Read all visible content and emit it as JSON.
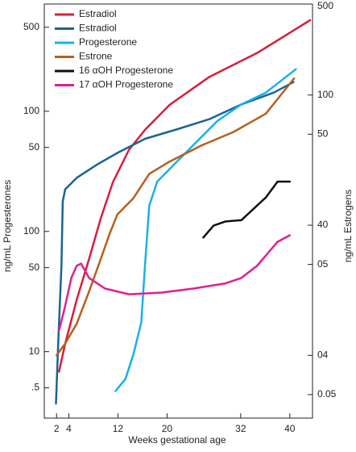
{
  "chart_data": {
    "type": "line",
    "log_scale": true,
    "xlabel": "Weeks gestational age",
    "ylabel": "ng/mL Progesterones",
    "y2label": "ng/mL Estrogens",
    "xlim": [
      0,
      43.7
    ],
    "xticks": [
      2,
      4,
      12,
      20,
      32,
      40
    ],
    "ylim": [
      0.28,
      780
    ],
    "yticks": [
      500,
      100,
      50,
      {
        "value": 10,
        "label": "100"
      },
      {
        "value": 5,
        "label": "50"
      },
      {
        "value": 1,
        "label": "10"
      },
      {
        "value": 0.5,
        "label": ".5"
      }
    ],
    "y2lim": [
      0.33,
      500
    ],
    "y2ticks": [
      500,
      100,
      50,
      {
        "value": 10,
        "label": "40"
      },
      {
        "value": 5,
        "label": "05"
      },
      {
        "value": 1,
        "label": "04"
      },
      {
        "value": 0.5,
        "label": "0.05"
      }
    ],
    "legend": "upper left",
    "series": [
      {
        "name": "Estradiol",
        "color": "#d81e3c",
        "axis": "y2",
        "x": [
          2.4,
          3.4,
          5.3,
          7.3,
          9.2,
          11.2,
          13.8,
          16.4,
          20.4,
          26.9,
          34.8,
          43.3
        ],
        "values": [
          0.75,
          1.23,
          2.7,
          5.5,
          11.3,
          21.5,
          38,
          54,
          84,
          138,
          212,
          376
        ]
      },
      {
        "name": "Estradiol",
        "color": "#1a6593",
        "axis": "y",
        "x": [
          1.9,
          2.3,
          2.8,
          3.0,
          3.4,
          5.3,
          8.6,
          11.9,
          16.4,
          21.7,
          26.9,
          32.1,
          37.4,
          40.6
        ],
        "values": [
          0.37,
          1.29,
          5.2,
          17.7,
          22.4,
          28,
          36,
          45,
          59,
          71,
          86,
          114,
          143,
          175
        ]
      },
      {
        "name": "Progesterone",
        "color": "#1ab0e8",
        "axis": "y",
        "x": [
          11.6,
          13.2,
          14.5,
          15.8,
          16.4,
          17.1,
          18.4,
          23.0,
          28.2,
          32.1,
          36.1,
          41.0
        ],
        "values": [
          0.47,
          0.59,
          0.94,
          1.75,
          5.2,
          16.4,
          26,
          45,
          83,
          114,
          143,
          224
        ]
      },
      {
        "name": "Estrone",
        "color": "#b5601e",
        "axis": "y2",
        "x": [
          2.0,
          3.4,
          5.3,
          7.3,
          9.2,
          10.6,
          11.9,
          14.5,
          17.1,
          20.4,
          25.6,
          30.8,
          36.1,
          40.7
        ],
        "values": [
          1.0,
          1.23,
          1.76,
          3.1,
          5.5,
          8.5,
          12.1,
          16.1,
          24.8,
          30.8,
          41,
          52,
          72,
          134
        ]
      },
      {
        "name": "16 αOH Progesterone",
        "color": "#111111",
        "axis": "y",
        "x": [
          25.9,
          27.6,
          29.5,
          32.1,
          36.1,
          38.0,
          40.0
        ],
        "values": [
          8.9,
          11.2,
          12.1,
          12.4,
          19.2,
          26,
          26
        ]
      },
      {
        "name": "17 αOH Progesterone",
        "color": "#e0208c",
        "axis": "y",
        "x": [
          2.4,
          3.4,
          4.4,
          5.3,
          6.0,
          7.3,
          9.9,
          13.8,
          19.1,
          24.3,
          29.5,
          32.1,
          34.7,
          38.0,
          40.0
        ],
        "values": [
          1.5,
          2.4,
          4.1,
          5.2,
          5.4,
          4.1,
          3.35,
          3.0,
          3.1,
          3.35,
          3.7,
          4.1,
          5.2,
          8.2,
          9.3
        ]
      }
    ]
  }
}
